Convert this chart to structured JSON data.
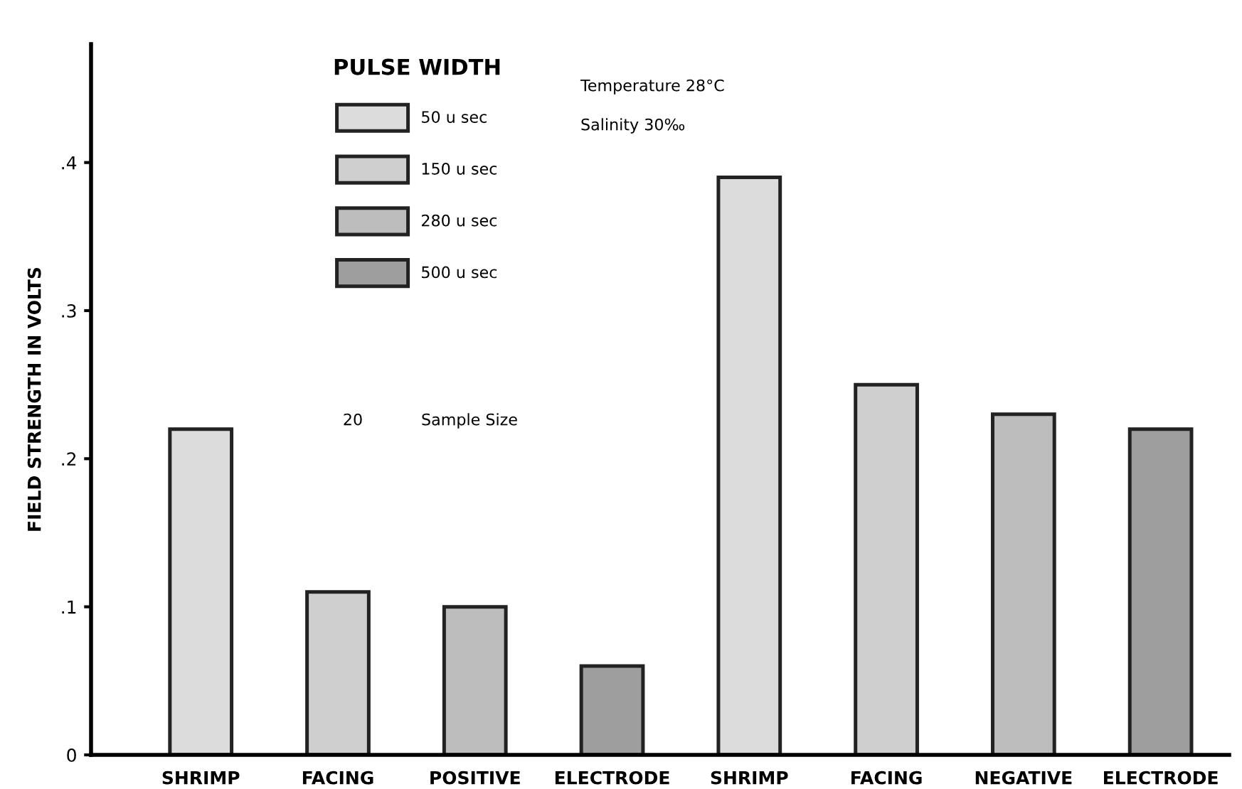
{
  "chart_data": {
    "type": "bar",
    "ylabel": "FIELD STRENGTH IN VOLTS",
    "legend_title": "PULSE WIDTH",
    "legend": "top left",
    "categories": [
      "SHRIMP",
      "FACING",
      "POSITIVE",
      "ELECTRODE",
      "SHRIMP",
      "FACING",
      "NEGATIVE",
      "ELECTRODE"
    ],
    "series": [
      {
        "name": "50 u sec",
        "color": "#dcdcdc",
        "values": [
          0.22,
          null,
          null,
          null,
          0.39,
          null,
          null,
          null
        ]
      },
      {
        "name": "150 u sec",
        "color": "#cfcfcf",
        "values": [
          null,
          0.11,
          null,
          null,
          null,
          0.25,
          null,
          null
        ]
      },
      {
        "name": "280 u sec",
        "color": "#bdbdbd",
        "values": [
          null,
          null,
          0.1,
          null,
          null,
          null,
          0.23,
          null
        ]
      },
      {
        "name": "500 u sec",
        "color": "#9e9e9e",
        "values": [
          null,
          null,
          null,
          0.06,
          null,
          null,
          null,
          0.22
        ]
      }
    ],
    "ylim": [
      0,
      0.48
    ],
    "yticks": [
      0,
      {
        "value": 0.1,
        "label": ".1"
      },
      {
        "value": 0.2,
        "label": ".2"
      },
      {
        "value": 0.3,
        "label": ".3"
      },
      {
        "value": 0.4,
        "label": ".4"
      }
    ],
    "annotations": [
      "Temperature 28°C",
      "Salinity 30‰",
      "20",
      "Sample Size"
    ]
  }
}
